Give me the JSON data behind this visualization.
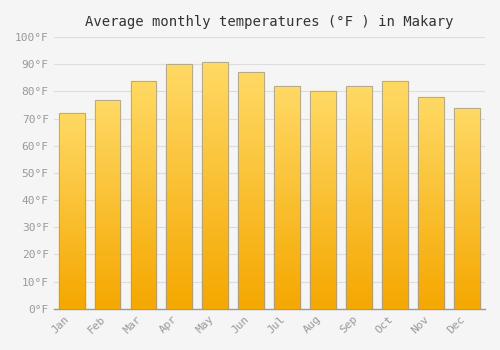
{
  "title": "Average monthly temperatures (°F ) in Makary",
  "months": [
    "Jan",
    "Feb",
    "Mar",
    "Apr",
    "May",
    "Jun",
    "Jul",
    "Aug",
    "Sep",
    "Oct",
    "Nov",
    "Dec"
  ],
  "values": [
    72,
    77,
    84,
    90,
    91,
    87,
    82,
    80,
    82,
    84,
    78,
    74
  ],
  "bar_color_bottom": "#F5A800",
  "bar_color_top": "#FFD966",
  "bar_color_edge": "#999999",
  "ylim": [
    0,
    100
  ],
  "yticks": [
    0,
    10,
    20,
    30,
    40,
    50,
    60,
    70,
    80,
    90,
    100
  ],
  "ytick_labels": [
    "0°F",
    "10°F",
    "20°F",
    "30°F",
    "40°F",
    "50°F",
    "60°F",
    "70°F",
    "80°F",
    "90°F",
    "100°F"
  ],
  "background_color": "#f5f5f5",
  "grid_color": "#dddddd",
  "font_family": "monospace",
  "title_fontsize": 10,
  "tick_fontsize": 8,
  "bar_width": 0.72
}
